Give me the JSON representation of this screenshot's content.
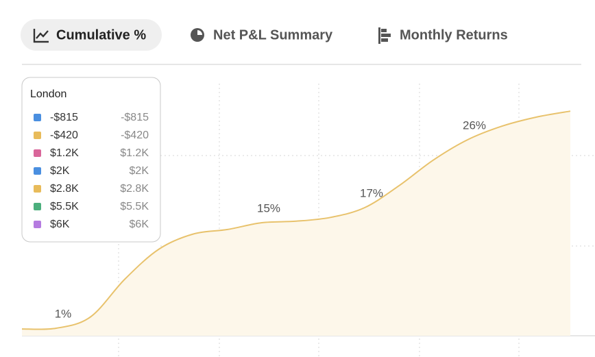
{
  "tabs": [
    {
      "label": "Cumulative %",
      "active": true
    },
    {
      "label": "Net P&L Summary",
      "active": false
    },
    {
      "label": "Monthly Returns",
      "active": false
    }
  ],
  "tooltip": {
    "title": "London",
    "items": [
      {
        "name": "-$815",
        "value": "-$815",
        "color": "#4a8fe0"
      },
      {
        "name": "-$420",
        "value": "-$420",
        "color": "#e8bb5a"
      },
      {
        "name": "$1.2K",
        "value": "$1.2K",
        "color": "#d9669a"
      },
      {
        "name": "$2K",
        "value": "$2K",
        "color": "#4a8fe0"
      },
      {
        "name": "$2.8K",
        "value": "$2.8K",
        "color": "#e8bb5a"
      },
      {
        "name": "$5.5K",
        "value": "$5.5K",
        "color": "#4caf7d"
      },
      {
        "name": "$6K",
        "value": "$6K",
        "color": "#b57be0"
      }
    ]
  },
  "chart_data": {
    "type": "line",
    "categories": [
      null,
      null,
      null,
      null,
      null,
      null,
      null,
      null,
      null,
      null,
      null,
      null,
      null,
      null,
      null,
      null,
      null
    ],
    "values": [
      0.9,
      1,
      2.5,
      7.5,
      11.5,
      13.5,
      14.1,
      15,
      15.2,
      15.7,
      17,
      19.9,
      23.3,
      26,
      27.8,
      29,
      29.8
    ],
    "value_labels": [
      null,
      "1%",
      null,
      null,
      null,
      null,
      null,
      "15%",
      null,
      null,
      "17%",
      null,
      null,
      "26%",
      null,
      null,
      null
    ],
    "color": "#e8c26c",
    "fill": "#fdf7ea",
    "ylim": [
      0,
      30
    ]
  }
}
